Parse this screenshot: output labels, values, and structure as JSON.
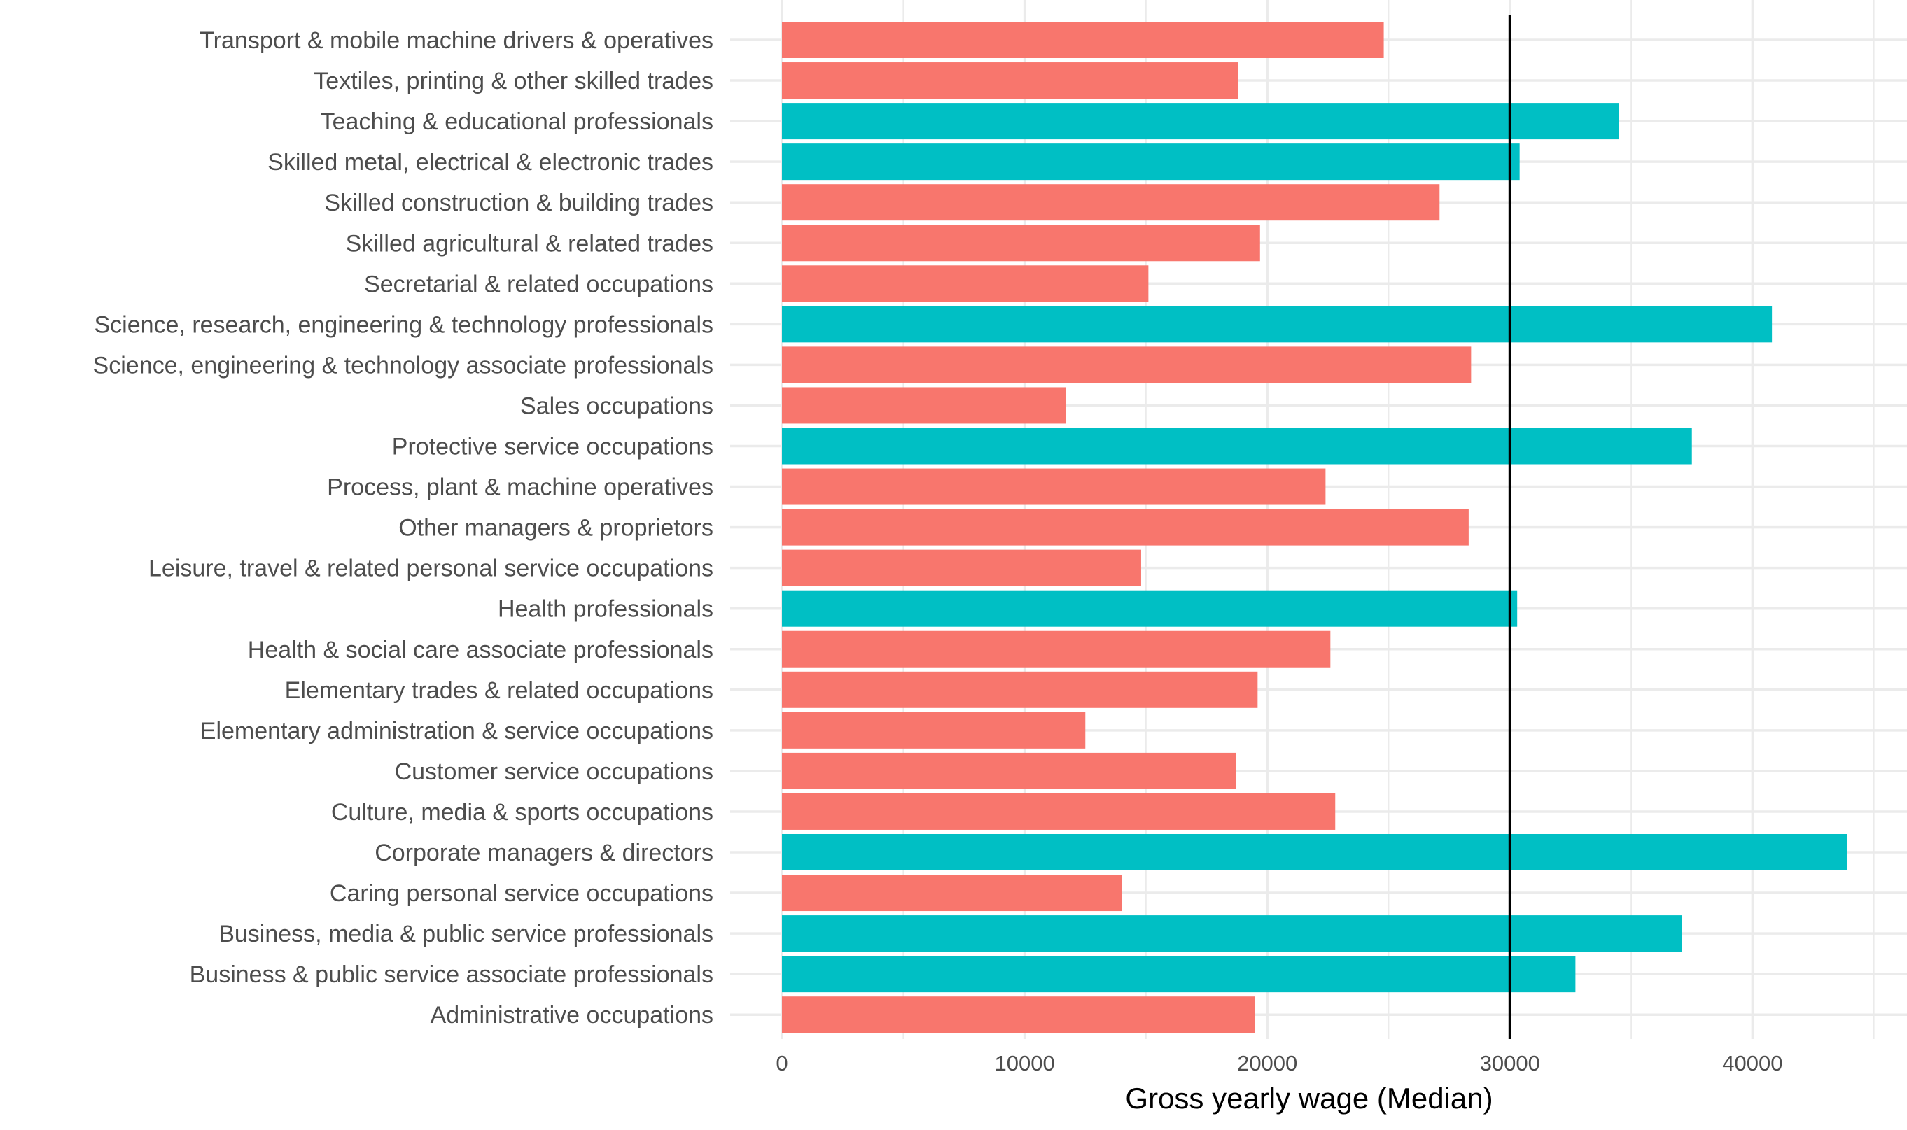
{
  "chart_data": {
    "type": "bar",
    "orientation": "horizontal",
    "title": "",
    "xlabel": "Gross yearly wage (Median)",
    "ylabel": "",
    "xlim": [
      0,
      45000
    ],
    "x_ticks": [
      0,
      10000,
      20000,
      30000,
      40000
    ],
    "x_tick_labels": [
      "0",
      "10000",
      "20000",
      "30000",
      "40000"
    ],
    "grid": true,
    "legend": "none",
    "reference_line": {
      "value": 30000,
      "color": "#000000"
    },
    "colors": {
      "below": "#F8766D",
      "above": "#00BFC4"
    },
    "categories": [
      "Transport & mobile machine drivers & operatives",
      "Textiles, printing & other skilled trades",
      "Teaching & educational professionals",
      "Skilled metal, electrical & electronic trades",
      "Skilled construction & building trades",
      "Skilled agricultural & related trades",
      "Secretarial & related occupations",
      "Science, research, engineering & technology professionals",
      "Science, engineering & technology associate professionals",
      "Sales occupations",
      "Protective service occupations",
      "Process, plant & machine operatives",
      "Other managers & proprietors",
      "Leisure, travel & related personal service occupations",
      "Health professionals",
      "Health & social care associate professionals",
      "Elementary trades & related occupations",
      "Elementary administration & service occupations",
      "Customer service occupations",
      "Culture, media & sports occupations",
      "Corporate managers & directors",
      "Caring personal service occupations",
      "Business, media & public service professionals",
      "Business & public service associate professionals",
      "Administrative occupations"
    ],
    "values": [
      24800,
      18800,
      34500,
      30400,
      27100,
      19700,
      15100,
      40800,
      28400,
      11700,
      37500,
      22400,
      28300,
      14800,
      30300,
      22600,
      19600,
      12500,
      18700,
      22800,
      43900,
      14000,
      37100,
      32700,
      19500
    ]
  }
}
